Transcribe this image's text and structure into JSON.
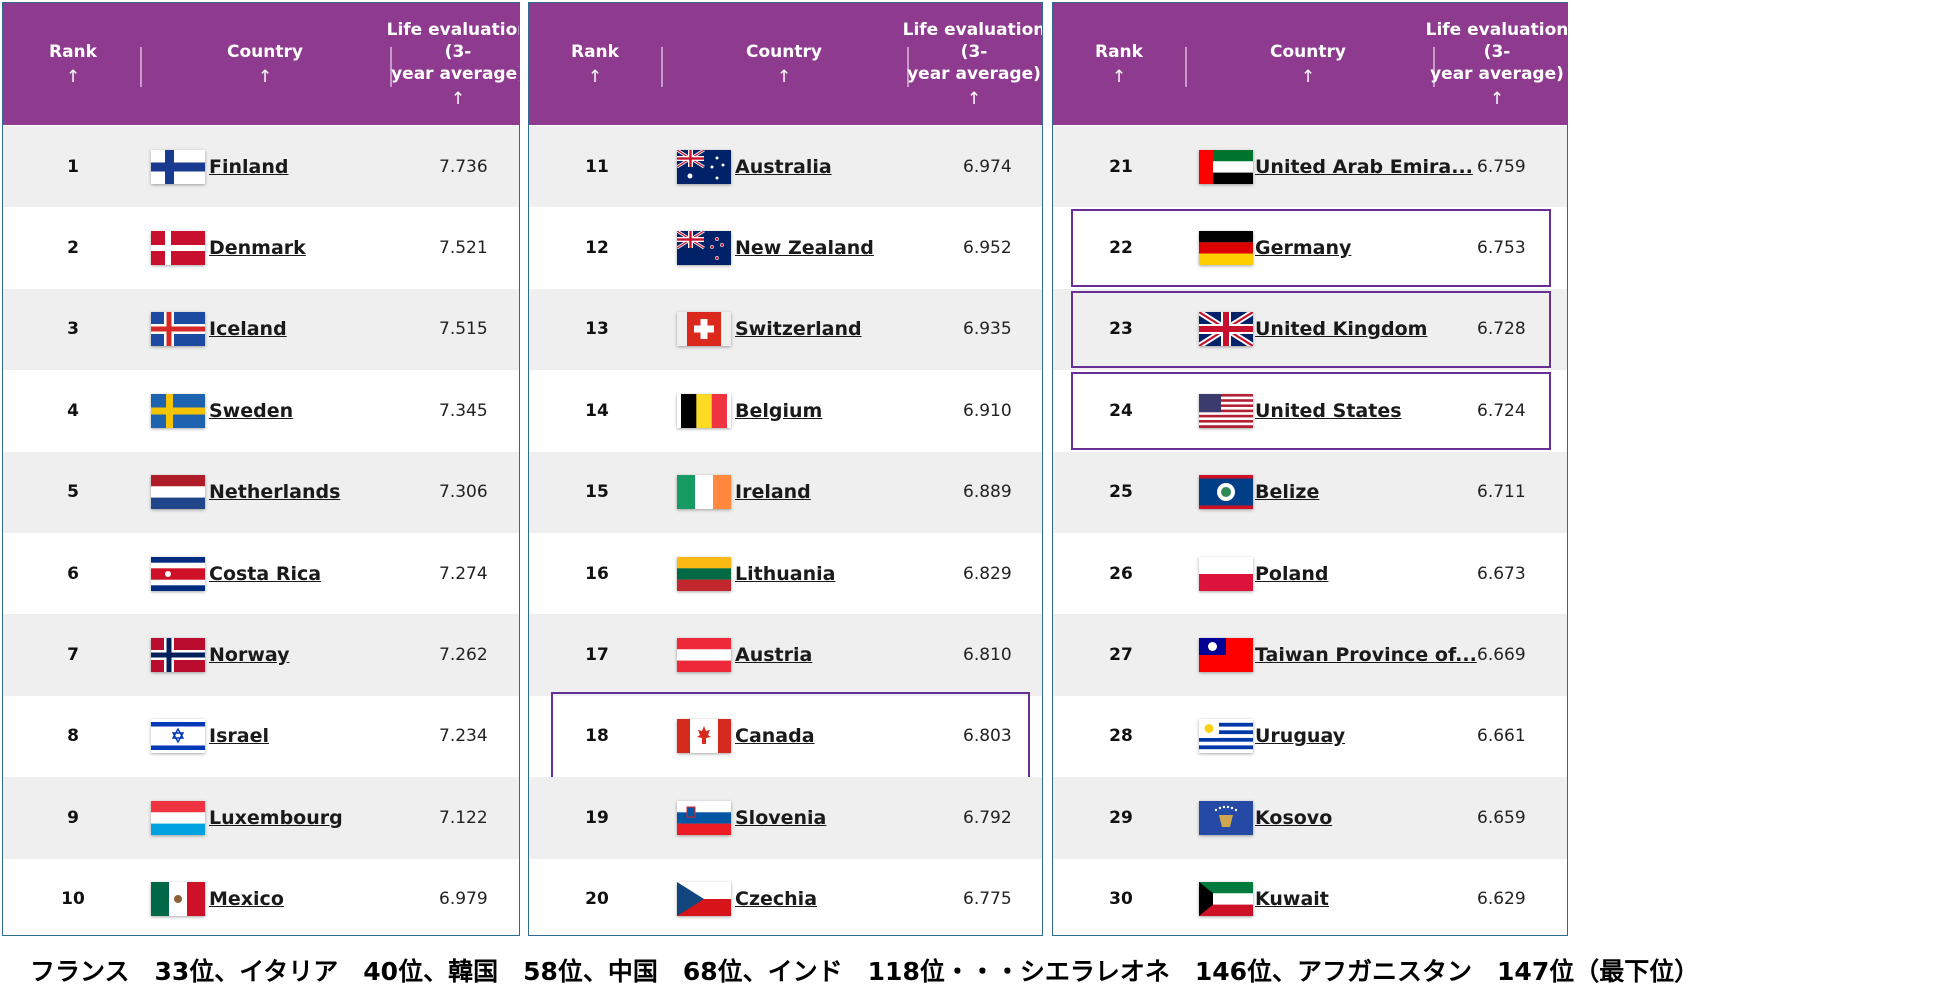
{
  "headers": {
    "rank": "Rank",
    "country": "Country",
    "life_line1": "Life evaluation (3-",
    "life_line2": "year average)",
    "sort_arrow": "↑"
  },
  "panels": [
    {
      "rows": [
        {
          "rank": "1",
          "country": "Finland",
          "score": "7.736",
          "flag": "finland"
        },
        {
          "rank": "2",
          "country": "Denmark",
          "score": "7.521",
          "flag": "denmark"
        },
        {
          "rank": "3",
          "country": "Iceland",
          "score": "7.515",
          "flag": "iceland"
        },
        {
          "rank": "4",
          "country": "Sweden",
          "score": "7.345",
          "flag": "sweden"
        },
        {
          "rank": "5",
          "country": "Netherlands",
          "score": "7.306",
          "flag": "netherlands"
        },
        {
          "rank": "6",
          "country": "Costa Rica",
          "score": "7.274",
          "flag": "costa-rica"
        },
        {
          "rank": "7",
          "country": "Norway",
          "score": "7.262",
          "flag": "norway"
        },
        {
          "rank": "8",
          "country": "Israel",
          "score": "7.234",
          "flag": "israel"
        },
        {
          "rank": "9",
          "country": "Luxembourg",
          "score": "7.122",
          "flag": "luxembourg"
        },
        {
          "rank": "10",
          "country": "Mexico",
          "score": "6.979",
          "flag": "mexico"
        }
      ]
    },
    {
      "rows": [
        {
          "rank": "11",
          "country": "Australia",
          "score": "6.974",
          "flag": "australia"
        },
        {
          "rank": "12",
          "country": "New Zealand",
          "score": "6.952",
          "flag": "new-zealand"
        },
        {
          "rank": "13",
          "country": "Switzerland",
          "score": "6.935",
          "flag": "switzerland"
        },
        {
          "rank": "14",
          "country": "Belgium",
          "score": "6.910",
          "flag": "belgium"
        },
        {
          "rank": "15",
          "country": "Ireland",
          "score": "6.889",
          "flag": "ireland"
        },
        {
          "rank": "16",
          "country": "Lithuania",
          "score": "6.829",
          "flag": "lithuania"
        },
        {
          "rank": "17",
          "country": "Austria",
          "score": "6.810",
          "flag": "austria"
        },
        {
          "rank": "18",
          "country": "Canada",
          "score": "6.803",
          "flag": "canada",
          "highlight": true
        },
        {
          "rank": "19",
          "country": "Slovenia",
          "score": "6.792",
          "flag": "slovenia"
        },
        {
          "rank": "20",
          "country": "Czechia",
          "score": "6.775",
          "flag": "czechia"
        }
      ]
    },
    {
      "rows": [
        {
          "rank": "21",
          "country": "United Arab Emira...",
          "score": "6.759",
          "flag": "uae"
        },
        {
          "rank": "22",
          "country": "Germany",
          "score": "6.753",
          "flag": "germany",
          "highlight": true
        },
        {
          "rank": "23",
          "country": "United Kingdom",
          "score": "6.728",
          "flag": "united-kingdom",
          "highlight": true
        },
        {
          "rank": "24",
          "country": "United States",
          "score": "6.724",
          "flag": "united-states",
          "highlight": true
        },
        {
          "rank": "25",
          "country": "Belize",
          "score": "6.711",
          "flag": "belize"
        },
        {
          "rank": "26",
          "country": "Poland",
          "score": "6.673",
          "flag": "poland"
        },
        {
          "rank": "27",
          "country": "Taiwan Province of...",
          "score": "6.669",
          "flag": "taiwan"
        },
        {
          "rank": "28",
          "country": "Uruguay",
          "score": "6.661",
          "flag": "uruguay"
        },
        {
          "rank": "29",
          "country": "Kosovo",
          "score": "6.659",
          "flag": "kosovo"
        },
        {
          "rank": "30",
          "country": "Kuwait",
          "score": "6.629",
          "flag": "kuwait"
        }
      ]
    }
  ],
  "caption": "フランス　33位、イタリア　40位、韓国　58位、中国　68位、インド　118位・・・シエラレオネ　146位、アフガニスタン　147位（最下位）",
  "colors": {
    "header": "#8e3a8e",
    "highlight_border": "#6a2f96",
    "alt_row": "#efefef"
  }
}
